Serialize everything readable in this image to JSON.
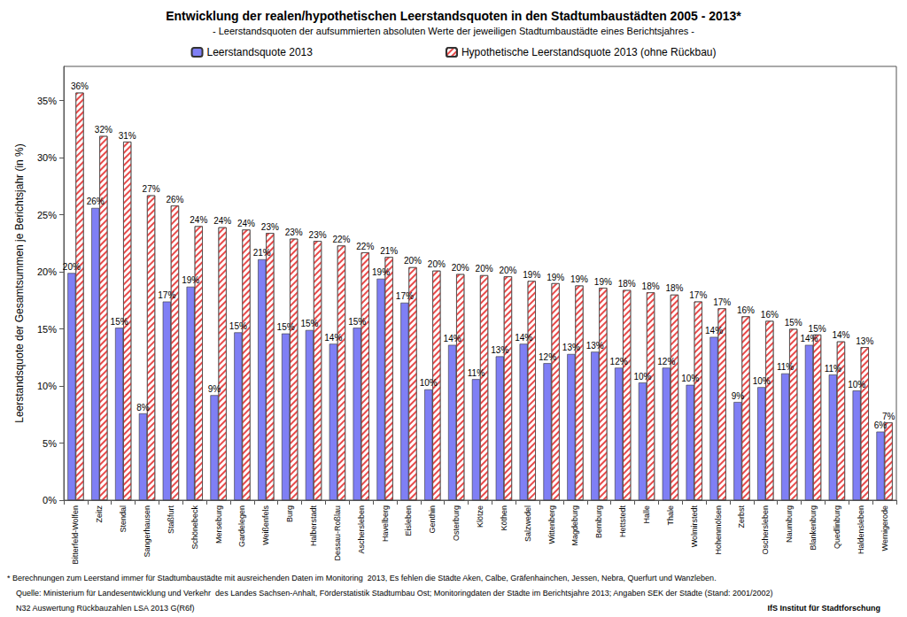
{
  "chart_data": {
    "type": "bar",
    "title": "Entwicklung der realen/hypothetischen Leerstandsquoten in den Stadtumbaustädten 2005 - 2013*",
    "subtitle": "- Leerstandsquoten der aufsummierten absoluten Werte der jeweiligen Stadtumbaustädte eines Berichtsjahres -",
    "y_label": "Leerstandsquote der Gesamtsummen je Berichtsjahr (in %)",
    "categories": [
      "Bitterfeld-Wolfen",
      "Zeitz",
      "Stendal",
      "Sangerhausen",
      "Staßfurt",
      "Schönebeck",
      "Merseburg",
      "Gardelegen",
      "Weißenfels",
      "Burg",
      "Halberstadt",
      "Dessau-Roßlau",
      "Aschersleben",
      "Havelberg",
      "Eisleben",
      "Genthin",
      "Osterburg",
      "Klötze",
      "Köthen",
      "Salzwedel",
      "Wittenberg",
      "Magdeburg",
      "Bernburg",
      "Hettstedt",
      "Halle",
      "Thale",
      "Wolmirstedt",
      "Hohenmölsen",
      "Zerbst",
      "Oschersleben",
      "Naumburg",
      "Blankenburg",
      "Quedlinburg",
      "Haldensleben",
      "Wernigerode"
    ],
    "series": [
      {
        "name": "Leerstandsquote 2013",
        "color": "#7f7ff5",
        "values": [
          19.9,
          25.6,
          15.1,
          7.6,
          17.4,
          18.7,
          9.2,
          14.7,
          21.1,
          14.6,
          14.9,
          13.7,
          15.1,
          19.4,
          17.3,
          9.7,
          13.6,
          10.6,
          12.6,
          13.7,
          12.0,
          12.8,
          13.0,
          11.6,
          10.3,
          11.6,
          10.1,
          14.3,
          8.6,
          9.9,
          11.1,
          13.6,
          11.0,
          9.6,
          6.0
        ],
        "value_labels": [
          "20%",
          "26%",
          "15%",
          "8%",
          "17%",
          "19%",
          "9%",
          "15%",
          "21%",
          "15%",
          "15%",
          "14%",
          "15%",
          "19%",
          "17%",
          "10%",
          "14%",
          "11%",
          "13%",
          "14%",
          "12%",
          "13%",
          "13%",
          "12%",
          "10%",
          "12%",
          "10%",
          "14%",
          "9%",
          "10%",
          "11%",
          "14%",
          "11%",
          "10%",
          "6%"
        ]
      },
      {
        "name": "Hypothetische Leerstandsquote 2013 (ohne Rückbau)",
        "color": "#e84a4a",
        "values": [
          35.7,
          31.9,
          31.4,
          26.7,
          25.8,
          24.0,
          23.9,
          23.7,
          23.4,
          22.9,
          22.7,
          22.3,
          21.7,
          21.3,
          20.4,
          20.1,
          19.8,
          19.7,
          19.6,
          19.2,
          19.0,
          18.8,
          18.6,
          18.4,
          18.2,
          18.0,
          17.4,
          16.8,
          16.1,
          15.7,
          15.0,
          14.5,
          13.9,
          13.4,
          6.8
        ],
        "value_labels": [
          "36%",
          "32%",
          "31%",
          "27%",
          "26%",
          "24%",
          "24%",
          "24%",
          "23%",
          "23%",
          "23%",
          "22%",
          "22%",
          "21%",
          "20%",
          "20%",
          "20%",
          "20%",
          "20%",
          "19%",
          "19%",
          "19%",
          "19%",
          "18%",
          "18%",
          "18%",
          "17%",
          "17%",
          "16%",
          "16%",
          "15%",
          "15%",
          "14%",
          "13%",
          "7%"
        ]
      }
    ],
    "ylim": [
      0,
      38
    ],
    "yticks": [
      {
        "value": 0,
        "label": "0%"
      },
      {
        "value": 5,
        "label": "5%"
      },
      {
        "value": 10,
        "label": "10%"
      },
      {
        "value": 15,
        "label": "15%"
      },
      {
        "value": 20,
        "label": "20%"
      },
      {
        "value": 25,
        "label": "25%"
      },
      {
        "value": 30,
        "label": "30%"
      },
      {
        "value": 35,
        "label": "35%"
      }
    ],
    "grid": false,
    "legend": "top",
    "data_labels": true,
    "annotations": [
      "* Berechnungen zum Leerstand immer für Stadtumbaustädte mit ausreichenden Daten im Monitoring  2013, Es fehlen die Städte Aken, Calbe, Gräfenhainchen, Jessen, Nebra, Querfurt und Wanzleben.",
      "Quelle: Ministerium für Landesentwicklung und Verkehr  des Landes Sachsen-Anhalt, Förderstatistik Stadtumbau Ost; Monitoringdaten der Städte im Berichtsjahre 2013; Angaben SEK der Städte (Stand: 2001/2002)",
      "N32 Auswertung Rückbauzahlen LSA 2013 G(R6f)",
      "IfS Institut für Stadtforschung"
    ]
  }
}
